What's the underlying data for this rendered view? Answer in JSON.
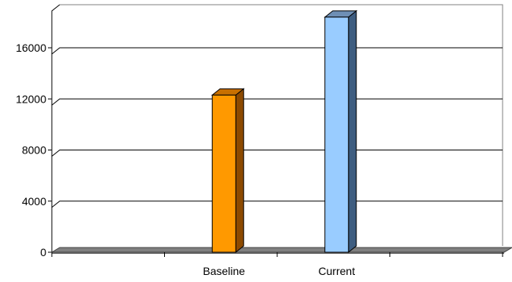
{
  "chart_data": {
    "type": "bar",
    "categories": [
      "Baseline",
      "Current"
    ],
    "values": [
      12300,
      18400
    ],
    "ylim": [
      0,
      18000
    ],
    "yticks": [
      0,
      4000,
      8000,
      12000,
      16000
    ],
    "title": "",
    "xlabel": "",
    "ylabel": "",
    "grid": true,
    "three_d": true,
    "colors": {
      "bars": [
        "#FF9900",
        "#99CCFF"
      ],
      "bar_sides": [
        "#8C4A00",
        "#3E5D80"
      ],
      "bar_tops": [
        "#C87000",
        "#6E8FB5"
      ],
      "floor": "#808080",
      "gridline": "#000000"
    }
  }
}
